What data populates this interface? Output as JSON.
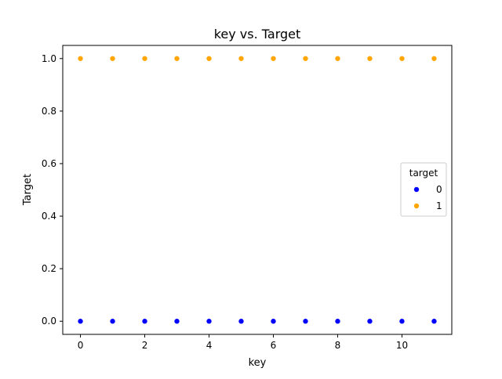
{
  "chart_data": {
    "type": "scatter",
    "title": "key vs. Target",
    "xlabel": "key",
    "ylabel": "Target",
    "xlim": [
      -0.55,
      11.55
    ],
    "ylim": [
      -0.05,
      1.05
    ],
    "xticks": [
      0,
      2,
      4,
      6,
      8,
      10
    ],
    "xtick_labels": [
      "0",
      "2",
      "4",
      "6",
      "8",
      "10"
    ],
    "yticks": [
      0.0,
      0.2,
      0.4,
      0.6,
      0.8,
      1.0
    ],
    "ytick_labels": [
      "0.0",
      "0.2",
      "0.4",
      "0.6",
      "0.8",
      "1.0"
    ],
    "grid": false,
    "legend": {
      "title": "target",
      "placement": "center-right"
    },
    "series": [
      {
        "name": "0",
        "color": "#0000ff",
        "x": [
          0,
          1,
          2,
          3,
          4,
          5,
          6,
          7,
          8,
          9,
          10,
          11
        ],
        "y": [
          0,
          0,
          0,
          0,
          0,
          0,
          0,
          0,
          0,
          0,
          0,
          0
        ]
      },
      {
        "name": "1",
        "color": "#ffa500",
        "x": [
          0,
          1,
          2,
          3,
          4,
          5,
          6,
          7,
          8,
          9,
          10,
          11
        ],
        "y": [
          1,
          1,
          1,
          1,
          1,
          1,
          1,
          1,
          1,
          1,
          1,
          1
        ]
      }
    ]
  }
}
